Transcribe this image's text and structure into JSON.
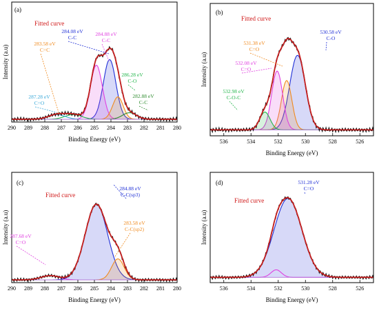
{
  "chart_data": [
    {
      "panel": "(a)",
      "type": "line",
      "xlabel": "Binding Energy (eV)",
      "ylabel": "Intensity (a.u)",
      "xlim": [
        290,
        280
      ],
      "xticks": [
        290,
        289,
        288,
        287,
        286,
        285,
        284,
        283,
        282,
        281,
        280
      ],
      "baseline": 0.0,
      "ylim": [
        0,
        1.05
      ],
      "legend": "none",
      "curve_label": "Fitted curve",
      "components": [
        {
          "name": "C-C",
          "energy_label": "284.08 eV",
          "center": 284.08,
          "height": 0.64,
          "width": 0.9,
          "color": "#1f2fd6"
        },
        {
          "name": "C-C",
          "energy_label": "284.88 eV",
          "center": 284.88,
          "height": 0.58,
          "width": 0.85,
          "color": "#e040e0"
        },
        {
          "name": "C=C",
          "energy_label": "283.58 eV",
          "center": 283.58,
          "height": 0.24,
          "width": 0.75,
          "color": "#f08a1e"
        },
        {
          "name": "C-O",
          "energy_label": "286.28 eV",
          "center": 286.28,
          "height": 0.05,
          "width": 1.2,
          "color": "#22b54a"
        },
        {
          "name": "C=O",
          "energy_label": "287.28 eV",
          "center": 287.28,
          "height": 0.05,
          "width": 1.2,
          "color": "#38a8d8"
        },
        {
          "name": "C-C",
          "energy_label": "282.88 eV",
          "center": 282.88,
          "height": 0.07,
          "width": 1.0,
          "color": "#2e8b2e"
        }
      ]
    },
    {
      "panel": "(b)",
      "type": "line",
      "xlabel": "Binding Energy (eV)",
      "ylabel": "Intensity (a.u)",
      "xlim": [
        537,
        525
      ],
      "xticks": [
        536,
        534,
        532,
        530,
        528,
        526
      ],
      "baseline": 0.03,
      "ylim": [
        0,
        1.05
      ],
      "legend": "none",
      "curve_label": "Fitted curve",
      "components": [
        {
          "name": "C-O",
          "energy_label": "530.58 eV",
          "center": 530.58,
          "height": 0.71,
          "width": 1.35,
          "color": "#1f2fd6"
        },
        {
          "name": "C=O",
          "energy_label": "531.38 eV",
          "center": 531.38,
          "height": 0.47,
          "width": 0.9,
          "color": "#f08a1e"
        },
        {
          "name": "C=O",
          "energy_label": "532.08 eV",
          "center": 532.08,
          "height": 0.56,
          "width": 0.95,
          "color": "#e040e0"
        },
        {
          "name": "C-O-C",
          "energy_label": "532.98 eV",
          "center": 532.98,
          "height": 0.17,
          "width": 0.9,
          "color": "#22b54a"
        }
      ]
    },
    {
      "panel": "(c)",
      "type": "line",
      "xlabel": "Binding Energy (eV)",
      "ylabel": "Intensity (a.u)",
      "xlim": [
        290,
        280
      ],
      "xticks": [
        290,
        289,
        288,
        287,
        286,
        285,
        284,
        283,
        282,
        281,
        280
      ],
      "baseline": 0.0,
      "ylim": [
        0,
        1.05
      ],
      "legend": "none",
      "curve_label": "Fitted curve",
      "components": [
        {
          "name": "C-C(sp3)",
          "energy_label": "284.88 eV",
          "center": 284.88,
          "height": 0.9,
          "width": 1.6,
          "color": "#1f2fd6"
        },
        {
          "name": "C-C(sp2)",
          "energy_label": "283.58 eV",
          "center": 283.58,
          "height": 0.25,
          "width": 0.9,
          "color": "#f08a1e"
        },
        {
          "name": "C=O",
          "energy_label": "287.68 eV",
          "center": 287.68,
          "height": 0.05,
          "width": 1.3,
          "color": "#e040e0"
        }
      ]
    },
    {
      "panel": "(d)",
      "type": "line",
      "xlabel": "Binding Energy (eV)",
      "ylabel": "Intensity (a.u)",
      "xlim": [
        537,
        525
      ],
      "xticks": [
        536,
        534,
        532,
        530,
        528,
        526
      ],
      "baseline": 0.03,
      "ylim": [
        0,
        1.05
      ],
      "legend": "none",
      "curve_label": "Fitted curve",
      "components": [
        {
          "name": "C=O",
          "energy_label": "531.28 eV",
          "center": 531.28,
          "height": 0.94,
          "width": 2.4,
          "color": "#1f2fd6"
        },
        {
          "name": "",
          "energy_label": "",
          "center": 532.15,
          "height": 0.09,
          "width": 0.9,
          "color": "#e040e0"
        }
      ]
    }
  ]
}
